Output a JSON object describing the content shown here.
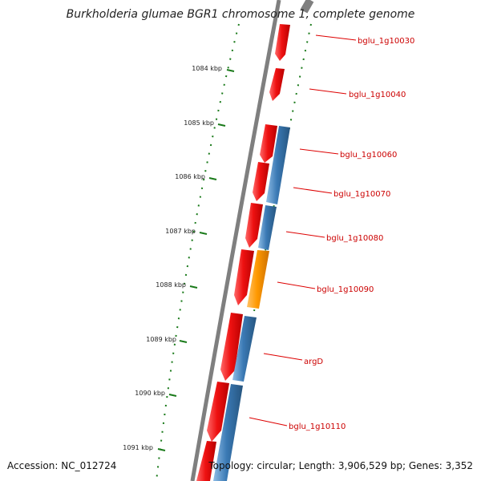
{
  "title": "Burkholderia glumae BGR1 chromosome 1, complete genome",
  "footer": {
    "accession": "Accession: NC_012724",
    "summary": "Topology: circular; Length: 3,906,529 bp; Genes: 3,352"
  },
  "colors": {
    "background": "#ffffff",
    "forward_gene": "#ee1111",
    "reverse_gene": "#3a79b4",
    "highlight_gene": "#ff9900",
    "scale_ticks": "#1a7a1a",
    "label_line": "#dd0000",
    "label_text": "#cc0000",
    "backbone": "#7f7f7f"
  },
  "scale": {
    "unit": "kbp",
    "labels": [
      "1084 kbp",
      "1085 kbp",
      "1086 kbp",
      "1087 kbp",
      "1088 kbp",
      "1089 kbp",
      "1090 kbp",
      "1091 kbp"
    ]
  },
  "genes": [
    {
      "label": "bglu_1g10030",
      "strand": "forward"
    },
    {
      "label": "bglu_1g10040",
      "strand": "forward"
    },
    {
      "label": "bglu_1g10060",
      "strand": "forward"
    },
    {
      "label": "bglu_1g10070",
      "strand": "forward"
    },
    {
      "label": "bglu_1g10080",
      "strand": "forward"
    },
    {
      "label": "bglu_1g10090",
      "strand": "forward"
    },
    {
      "label": "argD",
      "strand": "reverse"
    },
    {
      "label": "bglu_1g10110",
      "strand": "reverse"
    }
  ]
}
